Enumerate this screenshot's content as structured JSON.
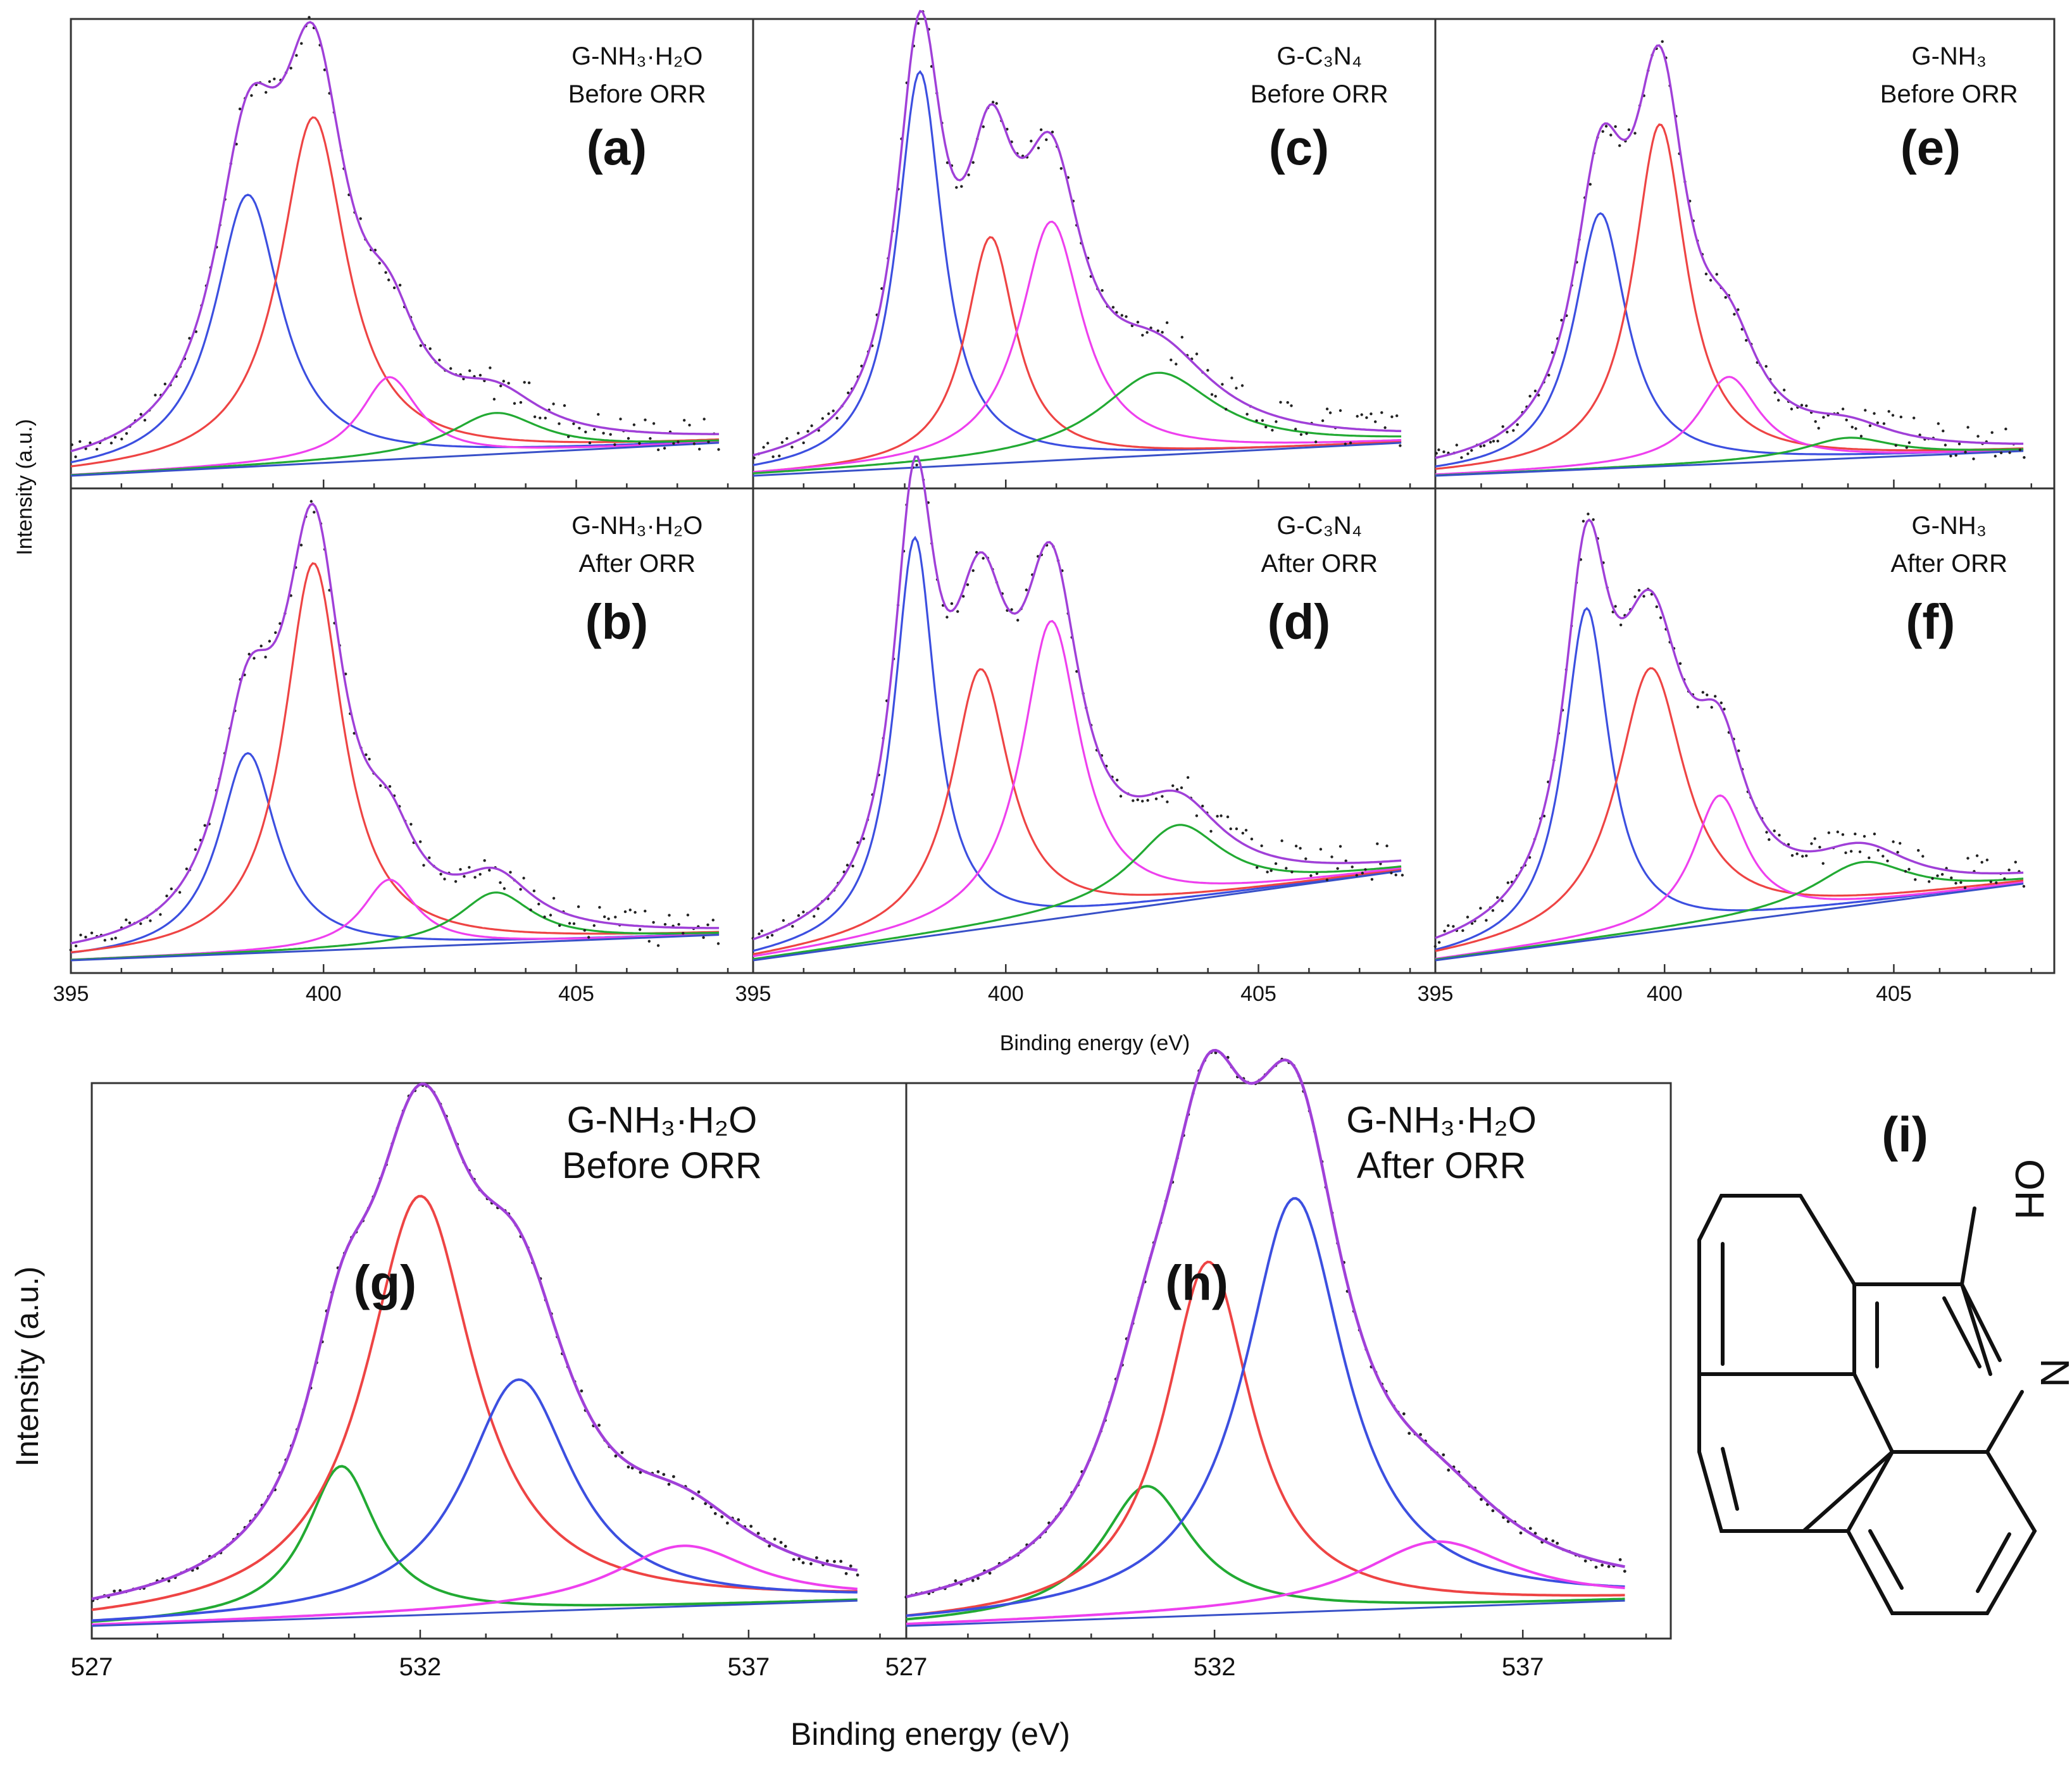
{
  "figure": {
    "top_ylabel": "Intensity (a.u.)",
    "top_xlabel": "Binding energy (eV)",
    "bottom_ylabel": "Intensity (a.u.)",
    "bottom_xlabel": "Binding energy (eV)",
    "structure_label": "(i)",
    "structure_atoms": {
      "n": "N",
      "oh": "OH"
    }
  },
  "colors": {
    "envelope": "#a040d8",
    "blue": "#3c4fe0",
    "red": "#ee4444",
    "magenta": "#ee40ee",
    "green": "#22aa33",
    "background": "#3850c8",
    "points": "#222222"
  },
  "chart_data": [
    {
      "id": "a",
      "type": "line",
      "panel_label": "(a)",
      "sample": [
        "G-NH₃·H₂O",
        "Before ORR"
      ],
      "xlim": [
        395,
        408.5
      ],
      "ylim": [
        0,
        1.09
      ],
      "xticks": [
        "395",
        "400",
        "405"
      ],
      "baseline": [
        0.0,
        0.08
      ],
      "series": [
        {
          "name": "peak 1",
          "color": "blue",
          "center": 398.5,
          "height": 0.66,
          "fwhm": 1.6
        },
        {
          "name": "peak 2",
          "color": "red",
          "center": 399.8,
          "height": 0.84,
          "fwhm": 1.6
        },
        {
          "name": "peak 3",
          "color": "magenta",
          "center": 401.3,
          "height": 0.2,
          "fwhm": 1.4
        },
        {
          "name": "peak 4",
          "color": "green",
          "center": 403.4,
          "height": 0.1,
          "fwhm": 2.2
        }
      ]
    },
    {
      "id": "b",
      "type": "line",
      "panel_label": "(b)",
      "sample": [
        "G-NH₃·H₂O",
        "After ORR"
      ],
      "xlim": [
        395,
        408.5
      ],
      "ylim": [
        0,
        1.09
      ],
      "xticks": [
        "395",
        "400",
        "405"
      ],
      "baseline": [
        0.0,
        0.06
      ],
      "series": [
        {
          "name": "peak 1",
          "color": "blue",
          "center": 398.5,
          "height": 0.47,
          "fwhm": 1.4
        },
        {
          "name": "peak 2",
          "color": "red",
          "center": 399.8,
          "height": 0.91,
          "fwhm": 1.4
        },
        {
          "name": "peak 3",
          "color": "magenta",
          "center": 401.3,
          "height": 0.16,
          "fwhm": 1.3
        },
        {
          "name": "peak 4",
          "color": "green",
          "center": 403.4,
          "height": 0.12,
          "fwhm": 1.8
        }
      ]
    },
    {
      "id": "c",
      "type": "line",
      "panel_label": "(c)",
      "sample": [
        "G-C₃N₄",
        "Before ORR"
      ],
      "xlim": [
        395,
        408.5
      ],
      "ylim": [
        0,
        1.09
      ],
      "xticks": [
        "395",
        "400",
        "405"
      ],
      "baseline": [
        0.0,
        0.08
      ],
      "series": [
        {
          "name": "peak 1",
          "color": "blue",
          "center": 398.3,
          "height": 0.96,
          "fwhm": 1.1
        },
        {
          "name": "peak 2",
          "color": "red",
          "center": 399.7,
          "height": 0.55,
          "fwhm": 1.2
        },
        {
          "name": "peak 3",
          "color": "magenta",
          "center": 400.9,
          "height": 0.58,
          "fwhm": 1.5
        },
        {
          "name": "peak 4",
          "color": "green",
          "center": 403.0,
          "height": 0.2,
          "fwhm": 2.8
        }
      ]
    },
    {
      "id": "d",
      "type": "line",
      "panel_label": "(d)",
      "sample": [
        "G-C₃N₄",
        "After ORR"
      ],
      "xlim": [
        395,
        408.5
      ],
      "ylim": [
        0,
        1.09
      ],
      "xticks": [
        "395",
        "400",
        "405"
      ],
      "baseline": [
        0.0,
        0.21
      ],
      "series": [
        {
          "name": "peak 1",
          "color": "blue",
          "center": 398.2,
          "height": 0.94,
          "fwhm": 1.0
        },
        {
          "name": "peak 2",
          "color": "red",
          "center": 399.5,
          "height": 0.61,
          "fwhm": 1.4
        },
        {
          "name": "peak 3",
          "color": "magenta",
          "center": 400.9,
          "height": 0.7,
          "fwhm": 1.4
        },
        {
          "name": "peak 4",
          "color": "green",
          "center": 403.4,
          "height": 0.18,
          "fwhm": 2.2
        }
      ]
    },
    {
      "id": "e",
      "type": "line",
      "panel_label": "(e)",
      "sample": [
        "G-NH₃",
        "Before ORR"
      ],
      "xlim": [
        395,
        408.5
      ],
      "ylim": [
        0,
        1.09
      ],
      "xticks": [
        "395",
        "400",
        "405"
      ],
      "baseline": [
        0.0,
        0.06
      ],
      "series": [
        {
          "name": "peak 1",
          "color": "blue",
          "center": 398.6,
          "height": 0.62,
          "fwhm": 1.4
        },
        {
          "name": "peak 2",
          "color": "red",
          "center": 399.9,
          "height": 0.83,
          "fwhm": 1.4
        },
        {
          "name": "peak 3",
          "color": "magenta",
          "center": 401.4,
          "height": 0.21,
          "fwhm": 1.6
        },
        {
          "name": "peak 4",
          "color": "green",
          "center": 404.0,
          "height": 0.05,
          "fwhm": 2.4
        }
      ]
    },
    {
      "id": "f",
      "type": "line",
      "panel_label": "(f)",
      "sample": [
        "G-NH₃",
        "After ORR"
      ],
      "xlim": [
        395,
        408.5
      ],
      "ylim": [
        0,
        1.09
      ],
      "xticks": [
        "395",
        "400",
        "405"
      ],
      "baseline": [
        0.0,
        0.18
      ],
      "series": [
        {
          "name": "peak 1",
          "color": "blue",
          "center": 398.3,
          "height": 0.78,
          "fwhm": 1.2
        },
        {
          "name": "peak 2",
          "color": "red",
          "center": 399.7,
          "height": 0.62,
          "fwhm": 1.8
        },
        {
          "name": "peak 3",
          "color": "magenta",
          "center": 401.2,
          "height": 0.3,
          "fwhm": 1.4
        },
        {
          "name": "peak 4",
          "color": "green",
          "center": 404.3,
          "height": 0.1,
          "fwhm": 2.6
        }
      ]
    },
    {
      "id": "g",
      "type": "line",
      "panel_label": "(g)",
      "sample": [
        "G-NH₃·H₂O",
        "Before ORR"
      ],
      "xlim": [
        527,
        539.4
      ],
      "ylim": [
        0,
        1.06
      ],
      "xticks": [
        "527",
        "532",
        "537"
      ],
      "baseline": [
        0.0,
        0.05
      ],
      "series": [
        {
          "name": "peak 1",
          "color": "green",
          "center": 530.8,
          "height": 0.3,
          "fwhm": 1.3
        },
        {
          "name": "peak 2",
          "color": "red",
          "center": 532.0,
          "height": 0.83,
          "fwhm": 2.0
        },
        {
          "name": "peak 3",
          "color": "blue",
          "center": 533.5,
          "height": 0.46,
          "fwhm": 2.0
        },
        {
          "name": "peak 4",
          "color": "magenta",
          "center": 536.0,
          "height": 0.12,
          "fwhm": 2.6
        }
      ]
    },
    {
      "id": "h",
      "type": "line",
      "panel_label": "(h)",
      "sample": [
        "G-NH₃·H₂O",
        "After ORR"
      ],
      "xlim": [
        527,
        539.4
      ],
      "ylim": [
        0,
        1.06
      ],
      "xticks": [
        "527",
        "532",
        "537"
      ],
      "baseline": [
        0.0,
        0.05
      ],
      "series": [
        {
          "name": "peak 1",
          "color": "green",
          "center": 530.9,
          "height": 0.26,
          "fwhm": 1.8
        },
        {
          "name": "peak 2",
          "color": "red",
          "center": 531.9,
          "height": 0.7,
          "fwhm": 1.7
        },
        {
          "name": "peak 3",
          "color": "blue",
          "center": 533.3,
          "height": 0.82,
          "fwhm": 2.0
        },
        {
          "name": "peak 4",
          "color": "magenta",
          "center": 535.6,
          "height": 0.13,
          "fwhm": 3.0
        }
      ]
    }
  ]
}
